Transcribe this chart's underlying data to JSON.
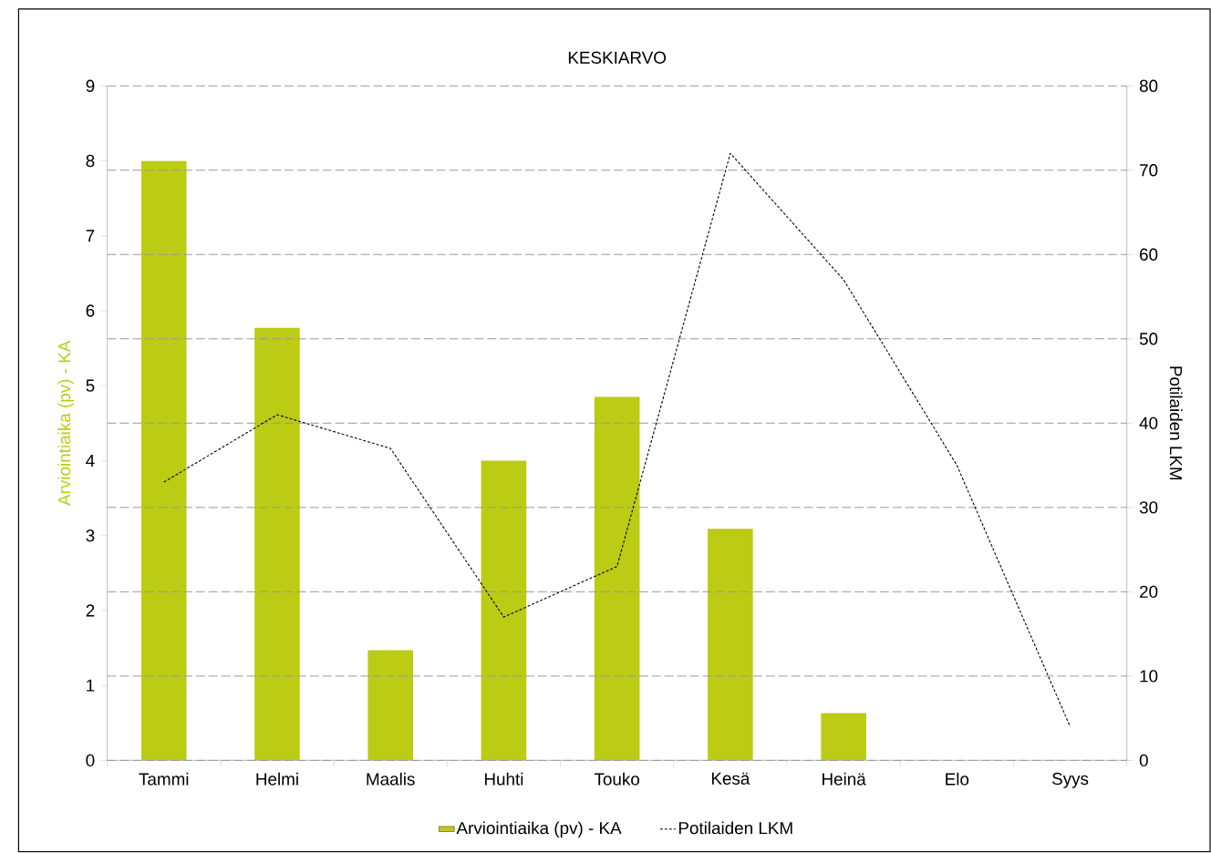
{
  "chart_data": {
    "type": "bar",
    "title": "KESKIARVO",
    "ylabel": "Arviointiaika (pv) - KA",
    "y2label": "Potilaiden LKM",
    "categories": [
      "Tammi",
      "Helmi",
      "Maalis",
      "Huhti",
      "Touko",
      "Kesä",
      "Heinä",
      "Elo",
      "Syys"
    ],
    "series": [
      {
        "name": "Arviointiaika (pv) - KA",
        "color": "#bccb14",
        "values": [
          8.0,
          5.77,
          1.47,
          4.0,
          4.85,
          3.09,
          0.63,
          null,
          null
        ]
      },
      {
        "name": "Potilaiden LKM",
        "type": "line",
        "axis": "y2",
        "color": "#000000",
        "line_style": "dashed",
        "marker": "none",
        "values": [
          33,
          41,
          37,
          17,
          23,
          72,
          57,
          35,
          4
        ]
      }
    ],
    "ylim": [
      0,
      9
    ],
    "yticks": [
      0,
      1,
      2,
      3,
      4,
      5,
      6,
      7,
      8,
      9
    ],
    "y2lim": [
      0,
      80
    ],
    "y2ticks": [
      0,
      10,
      20,
      30,
      40,
      50,
      60,
      70,
      80
    ],
    "grid": "y",
    "legend": "bottom"
  }
}
